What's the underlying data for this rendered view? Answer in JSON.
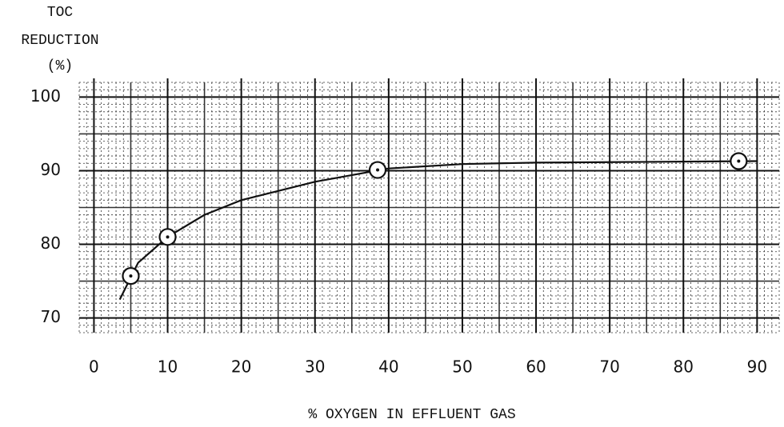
{
  "chart_data": {
    "type": "scatter",
    "y_label_lines": [
      "TOC",
      "REDUCTION",
      "(%)"
    ],
    "x_label": "% OXYGEN IN EFFLUENT GAS",
    "x": [
      5,
      10,
      38.5,
      87.5
    ],
    "values": [
      75.7,
      81,
      90.1,
      91.3
    ],
    "color": "#111111",
    "curve": {
      "x": [
        3.5,
        6,
        10,
        15,
        20,
        30,
        40,
        50,
        60,
        75,
        90
      ],
      "y": [
        72.5,
        77.5,
        81,
        84,
        86,
        88.5,
        90.3,
        90.9,
        91.1,
        91.2,
        91.3
      ]
    },
    "xlim": [
      -2,
      93
    ],
    "xticks": [
      0,
      10,
      20,
      30,
      40,
      50,
      60,
      70,
      80,
      90
    ],
    "ylim": [
      68,
      102
    ],
    "yticks": [
      70,
      80,
      90,
      100
    ],
    "grid": true
  }
}
